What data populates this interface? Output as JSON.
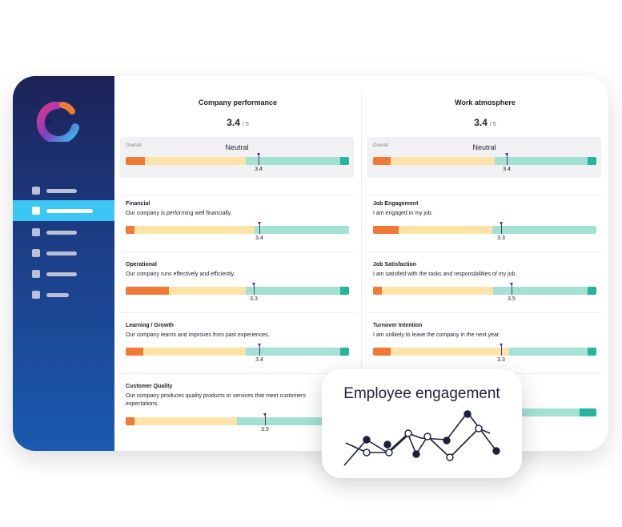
{
  "colors": {
    "sidebar_top": "#1c2257",
    "sidebar_bottom": "#1a5ab0",
    "active_nav": "#3cc6f4",
    "negative": "#f07a35",
    "neutral_low": "#fde3a7",
    "neutral_high": "#a4e1d5",
    "positive": "#26b49a",
    "marker": "#6b2a8c"
  },
  "sidebar": {
    "logo": "culture-amp-logo",
    "items": [
      {
        "icon": "nav-item-1",
        "active": false
      },
      {
        "icon": "nav-item-2",
        "active": true
      },
      {
        "icon": "nav-item-3",
        "active": false
      },
      {
        "icon": "nav-item-4",
        "active": false
      },
      {
        "icon": "nav-item-5",
        "active": false
      },
      {
        "icon": "nav-item-6",
        "active": false
      }
    ]
  },
  "left": {
    "title": "Company performance",
    "score": "3.4",
    "denom": "/ 5",
    "overall": {
      "label": "Overall",
      "sentiment": "Neutral",
      "value": "3.4"
    },
    "rows": [
      {
        "title": "Financial",
        "desc": "Our company is performing well financially.",
        "value": "3.4"
      },
      {
        "title": "Operational",
        "desc": "Our company runs effectively and efficiently.",
        "value": "3.3"
      },
      {
        "title": "Learning / Growth",
        "desc": "Our company learns and improves from past experiences.",
        "value": "3.4"
      },
      {
        "title": "Customer Quality",
        "desc": "Our company produces quality products or services that meet customers",
        "desc2": "expectations.",
        "value": "3.5"
      }
    ]
  },
  "right": {
    "title": "Work atmosphere",
    "score": "3.4",
    "denom": "/ 5",
    "overall": {
      "label": "Overall",
      "sentiment": "Neutral",
      "value": "3.4"
    },
    "rows": [
      {
        "title": "Job Engagement",
        "desc": "I am engaged in my job.",
        "value": "3.3"
      },
      {
        "title": "Job Satisfaction",
        "desc": "I am satisfied with the tasks and responsibilities of my job.",
        "value": "3.5"
      },
      {
        "title": "Turnover Intention",
        "desc": "I am unlikely to leave the company in the next year.",
        "value": "3.3"
      }
    ]
  },
  "floating_card": {
    "title": "Employee engagement",
    "icon": "line-chart-icon"
  }
}
